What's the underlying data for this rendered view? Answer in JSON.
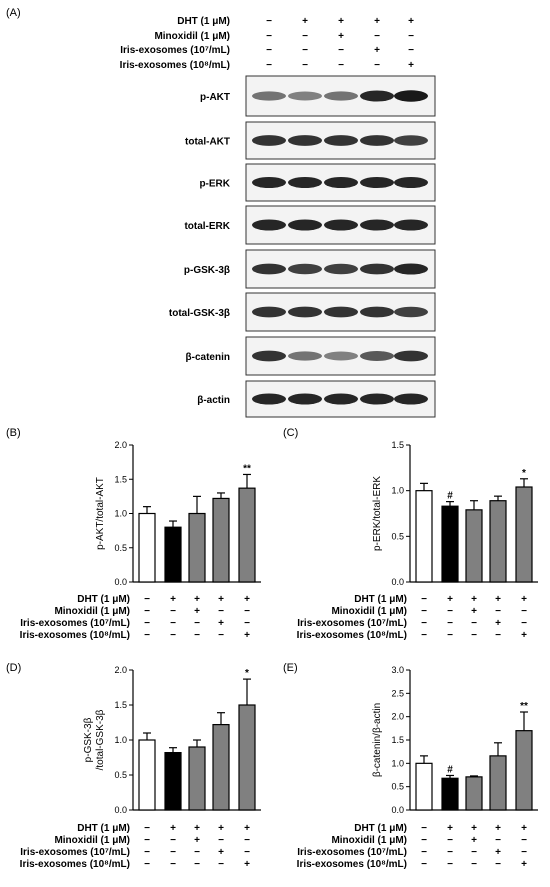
{
  "panel_a": {
    "label": "(A)",
    "condition_rows": [
      {
        "label": "DHT (1 μM)",
        "signs": [
          "−",
          "+",
          "+",
          "+",
          "+"
        ]
      },
      {
        "label": "Minoxidil (1 μM)",
        "signs": [
          "−",
          "−",
          "+",
          "−",
          "−"
        ]
      },
      {
        "label": "Iris-exosomes (10⁷/mL)",
        "signs": [
          "−",
          "−",
          "−",
          "+",
          "−"
        ]
      },
      {
        "label": "Iris-exosomes (10⁸/mL)",
        "signs": [
          "−",
          "−",
          "−",
          "−",
          "+"
        ]
      }
    ],
    "blots": [
      {
        "label": "p-AKT",
        "intensity": [
          0.55,
          0.5,
          0.55,
          0.85,
          0.9
        ]
      },
      {
        "label": "total-AKT",
        "intensity": [
          0.8,
          0.8,
          0.8,
          0.8,
          0.75
        ]
      },
      {
        "label": "p-ERK",
        "intensity": [
          0.85,
          0.85,
          0.85,
          0.85,
          0.85
        ]
      },
      {
        "label": "total-ERK",
        "intensity": [
          0.85,
          0.85,
          0.85,
          0.85,
          0.85
        ]
      },
      {
        "label": "p-GSK-3β",
        "intensity": [
          0.8,
          0.75,
          0.75,
          0.8,
          0.85
        ]
      },
      {
        "label": "total-GSK-3β",
        "intensity": [
          0.8,
          0.8,
          0.8,
          0.8,
          0.75
        ]
      },
      {
        "label": "β-catenin",
        "intensity": [
          0.8,
          0.55,
          0.5,
          0.65,
          0.8
        ]
      },
      {
        "label": "β-actin",
        "intensity": [
          0.85,
          0.85,
          0.85,
          0.85,
          0.85
        ]
      }
    ]
  },
  "bar_conditions": [
    {
      "label": "DHT (1 μM)",
      "signs": [
        "−",
        "+",
        "+",
        "+",
        "+"
      ]
    },
    {
      "label": "Minoxidil (1 μM)",
      "signs": [
        "−",
        "−",
        "+",
        "−",
        "−"
      ]
    },
    {
      "label": "Iris-exosomes (10⁷/mL)",
      "signs": [
        "−",
        "−",
        "−",
        "+",
        "−"
      ]
    },
    {
      "label": "Iris-exosomes (10⁸/mL)",
      "signs": [
        "−",
        "−",
        "−",
        "−",
        "+"
      ]
    }
  ],
  "bar_colors": [
    "#ffffff",
    "#000000",
    "#808080",
    "#808080",
    "#808080"
  ],
  "chart_data": [
    {
      "panel": "(B)",
      "type": "bar",
      "ylabel": "p-AKT/total-AKT",
      "ylim": [
        0,
        2.0
      ],
      "yticks": [
        "0.0",
        "0.5",
        "1.0",
        "1.5",
        "2.0"
      ],
      "values": [
        1.0,
        0.8,
        1.0,
        1.22,
        1.37
      ],
      "errors": [
        0.1,
        0.09,
        0.25,
        0.08,
        0.2
      ],
      "annotations": [
        "",
        "",
        "",
        "",
        "**"
      ]
    },
    {
      "panel": "(C)",
      "type": "bar",
      "ylabel": "p-ERK/total-ERK",
      "ylim": [
        0,
        1.5
      ],
      "yticks": [
        "0.0",
        "0.5",
        "1.0",
        "1.5"
      ],
      "values": [
        1.0,
        0.83,
        0.79,
        0.89,
        1.04
      ],
      "errors": [
        0.08,
        0.05,
        0.1,
        0.05,
        0.09
      ],
      "annotations": [
        "",
        "#",
        "",
        "",
        "*"
      ]
    },
    {
      "panel": "(D)",
      "type": "bar",
      "ylabel": "p-GSK-3β /total-GSK-3β",
      "ylabel_lines": [
        "p-GSK-3β",
        "/total-GSK-3β"
      ],
      "ylim": [
        0,
        2.0
      ],
      "yticks": [
        "0.0",
        "0.5",
        "1.0",
        "1.5",
        "2.0"
      ],
      "values": [
        1.0,
        0.82,
        0.9,
        1.22,
        1.5
      ],
      "errors": [
        0.1,
        0.07,
        0.1,
        0.17,
        0.37
      ],
      "annotations": [
        "",
        "",
        "",
        "",
        "*"
      ]
    },
    {
      "panel": "(E)",
      "type": "bar",
      "ylabel": "β-catenin/β-actin",
      "ylim": [
        0,
        3.0
      ],
      "yticks": [
        "0.0",
        "0.5",
        "1.0",
        "1.5",
        "2.0",
        "2.5",
        "3.0"
      ],
      "values": [
        1.0,
        0.68,
        0.71,
        1.16,
        1.7
      ],
      "errors": [
        0.16,
        0.06,
        0.02,
        0.28,
        0.4
      ],
      "annotations": [
        "",
        "#",
        "",
        "",
        "**"
      ]
    }
  ]
}
